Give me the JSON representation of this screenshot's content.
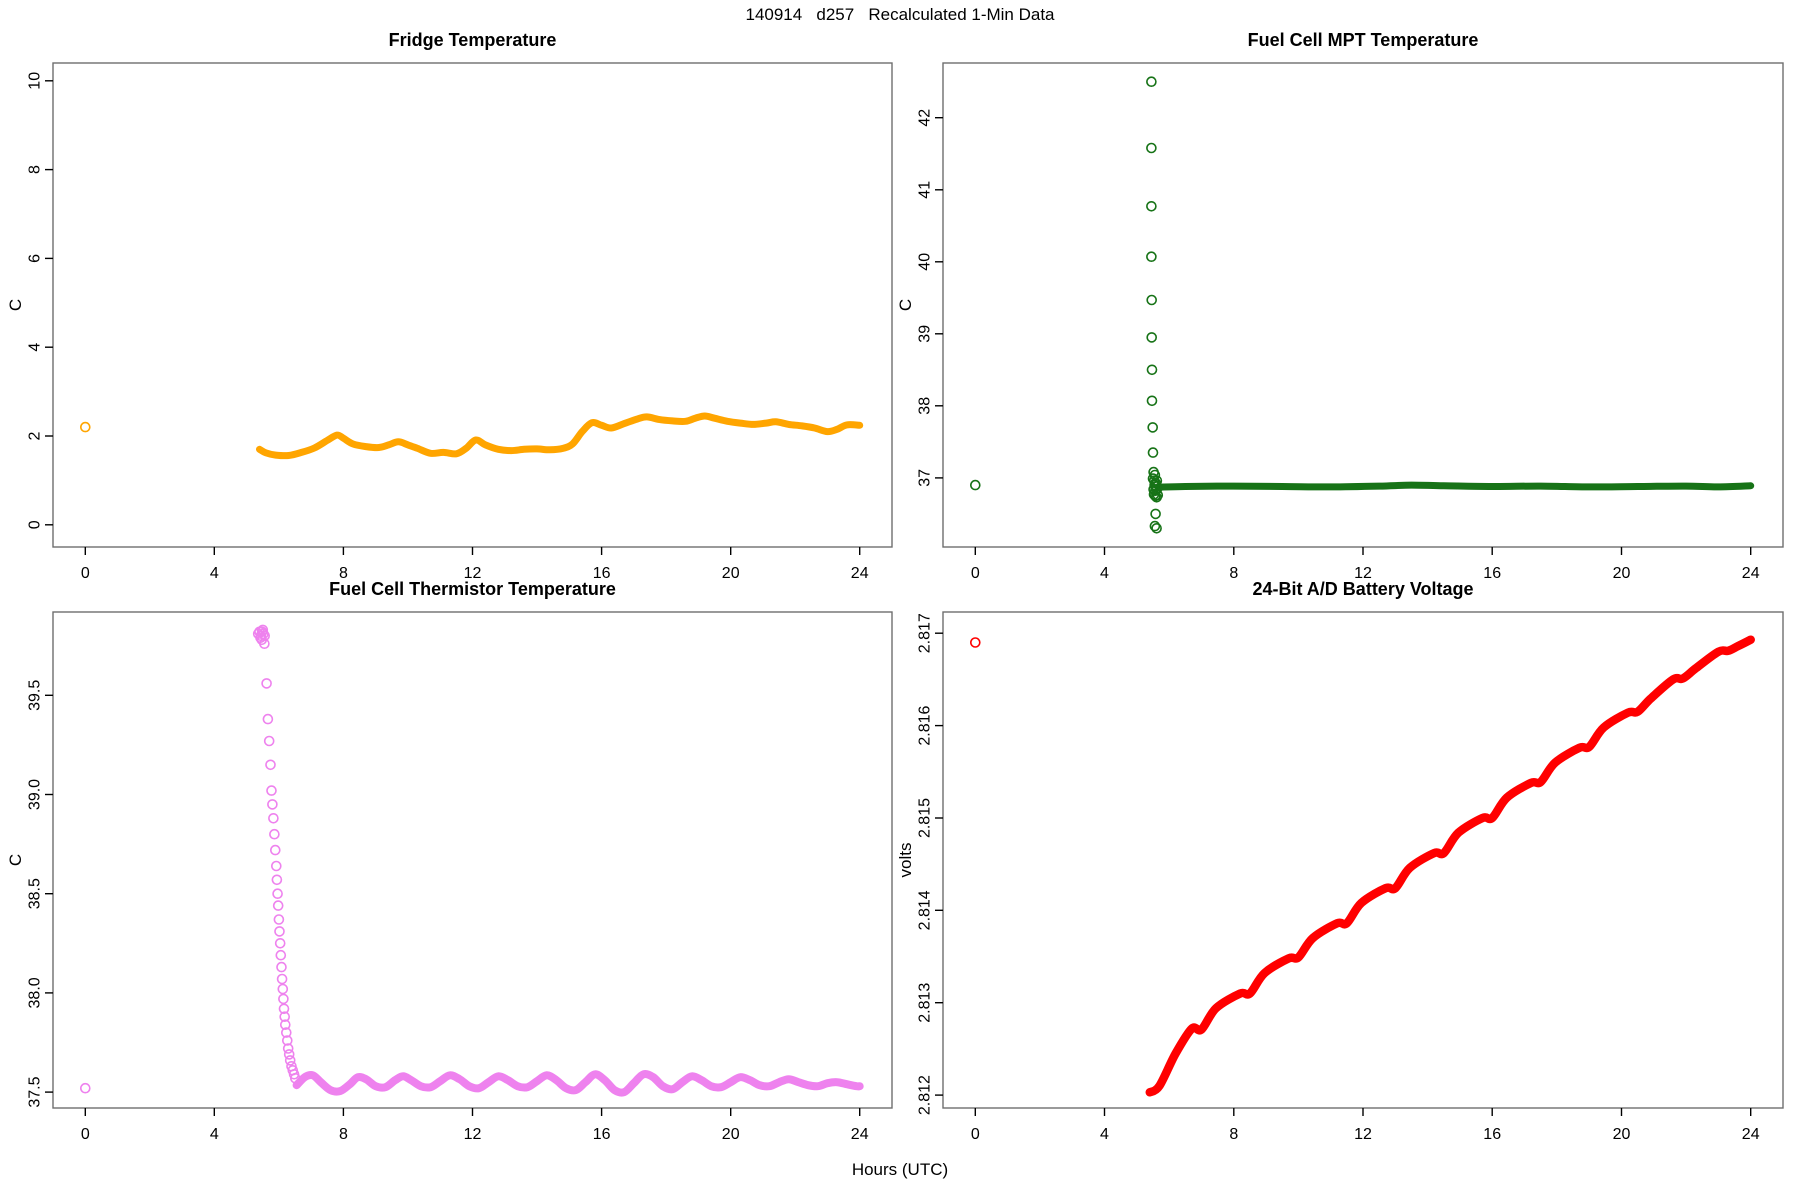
{
  "header": {
    "title": "140914   d257   Recalculated 1-Min Data"
  },
  "footer": {
    "xlabel": "Hours (UTC)"
  },
  "colors": {
    "fridge": "#FFA500",
    "mpt": "#177317",
    "thermistor": "#EE82EE",
    "battery": "#FF0000",
    "box": "#6e6e6e",
    "tick": "#000000"
  },
  "chart_data": [
    {
      "id": "fridge",
      "type": "line",
      "title": "Fridge Temperature",
      "ylabel": "C",
      "xlabel": "",
      "color": "#FFA500",
      "xlim": [
        -1,
        25
      ],
      "ylim": [
        -0.5,
        10.4
      ],
      "xticks": [
        0,
        4,
        8,
        12,
        16,
        20,
        24
      ],
      "xtick_labels": [
        "0",
        "4",
        "8",
        "12",
        "16",
        "20",
        "24"
      ],
      "yticks": [
        0,
        2,
        4,
        6,
        8,
        10
      ],
      "ytick_labels": [
        "0",
        "2",
        "4",
        "6",
        "8",
        "10"
      ],
      "grid": false,
      "isolated_points": [
        [
          0,
          2.2
        ]
      ],
      "points": [],
      "series": [
        {
          "name": "fridge-temp-trace",
          "style": "thick",
          "width": 7,
          "smooth": true,
          "pts": [
            [
              5.4,
              1.7
            ],
            [
              5.6,
              1.62
            ],
            [
              5.9,
              1.57
            ],
            [
              6.3,
              1.56
            ],
            [
              6.7,
              1.63
            ],
            [
              7.1,
              1.73
            ],
            [
              7.5,
              1.9
            ],
            [
              7.8,
              2.02
            ],
            [
              8.0,
              1.95
            ],
            [
              8.3,
              1.82
            ],
            [
              8.7,
              1.76
            ],
            [
              9.1,
              1.74
            ],
            [
              9.4,
              1.8
            ],
            [
              9.7,
              1.87
            ],
            [
              10.0,
              1.8
            ],
            [
              10.3,
              1.72
            ],
            [
              10.7,
              1.61
            ],
            [
              11.1,
              1.63
            ],
            [
              11.5,
              1.6
            ],
            [
              11.8,
              1.72
            ],
            [
              12.1,
              1.91
            ],
            [
              12.4,
              1.8
            ],
            [
              12.8,
              1.7
            ],
            [
              13.2,
              1.67
            ],
            [
              13.6,
              1.7
            ],
            [
              14.0,
              1.71
            ],
            [
              14.4,
              1.69
            ],
            [
              14.8,
              1.72
            ],
            [
              15.1,
              1.82
            ],
            [
              15.4,
              2.1
            ],
            [
              15.7,
              2.3
            ],
            [
              16.0,
              2.24
            ],
            [
              16.3,
              2.18
            ],
            [
              16.7,
              2.28
            ],
            [
              17.1,
              2.38
            ],
            [
              17.4,
              2.43
            ],
            [
              17.8,
              2.37
            ],
            [
              18.2,
              2.34
            ],
            [
              18.6,
              2.33
            ],
            [
              18.9,
              2.4
            ],
            [
              19.2,
              2.45
            ],
            [
              19.5,
              2.4
            ],
            [
              19.9,
              2.33
            ],
            [
              20.3,
              2.29
            ],
            [
              20.7,
              2.26
            ],
            [
              21.1,
              2.29
            ],
            [
              21.4,
              2.32
            ],
            [
              21.8,
              2.26
            ],
            [
              22.2,
              2.23
            ],
            [
              22.6,
              2.18
            ],
            [
              23.0,
              2.1
            ],
            [
              23.3,
              2.15
            ],
            [
              23.6,
              2.25
            ],
            [
              24.0,
              2.24
            ]
          ]
        }
      ]
    },
    {
      "id": "mpt",
      "type": "scatter",
      "title": "Fuel Cell MPT Temperature",
      "ylabel": "C",
      "xlabel": "",
      "color": "#177317",
      "xlim": [
        -1,
        25
      ],
      "ylim": [
        36.04,
        42.76
      ],
      "xticks": [
        0,
        4,
        8,
        12,
        16,
        20,
        24
      ],
      "xtick_labels": [
        "0",
        "4",
        "8",
        "12",
        "16",
        "20",
        "24"
      ],
      "yticks": [
        37,
        38,
        39,
        40,
        41,
        42
      ],
      "ytick_labels": [
        "37",
        "38",
        "39",
        "40",
        "41",
        "42"
      ],
      "grid": false,
      "isolated_points": [
        [
          0,
          36.9
        ]
      ],
      "points": [
        [
          5.45,
          42.5
        ],
        [
          5.45,
          41.58
        ],
        [
          5.45,
          40.77
        ],
        [
          5.45,
          40.07
        ],
        [
          5.46,
          39.47
        ],
        [
          5.46,
          38.95
        ],
        [
          5.47,
          38.5
        ],
        [
          5.47,
          38.07
        ],
        [
          5.49,
          37.7
        ],
        [
          5.5,
          37.35
        ],
        [
          5.52,
          37.08
        ],
        [
          5.56,
          37.04
        ],
        [
          5.5,
          36.99
        ],
        [
          5.54,
          36.96
        ],
        [
          5.58,
          36.93
        ],
        [
          5.62,
          36.96
        ],
        [
          5.55,
          36.9
        ],
        [
          5.6,
          36.88
        ],
        [
          5.52,
          36.84
        ],
        [
          5.57,
          36.82
        ],
        [
          5.62,
          36.84
        ],
        [
          5.53,
          36.77
        ],
        [
          5.57,
          36.75
        ],
        [
          5.61,
          36.73
        ],
        [
          5.65,
          36.76
        ],
        [
          5.58,
          36.5
        ],
        [
          5.56,
          36.33
        ],
        [
          5.61,
          36.3
        ]
      ],
      "series": [
        {
          "name": "mpt-steady-band",
          "style": "thick",
          "width": 7,
          "smooth": true,
          "pts": [
            [
              5.65,
              36.87
            ],
            [
              6.5,
              36.88
            ],
            [
              8.0,
              36.885
            ],
            [
              9.5,
              36.88
            ],
            [
              11.0,
              36.875
            ],
            [
              12.5,
              36.885
            ],
            [
              13.5,
              36.9
            ],
            [
              14.5,
              36.89
            ],
            [
              16.0,
              36.88
            ],
            [
              17.5,
              36.885
            ],
            [
              19.0,
              36.875
            ],
            [
              20.5,
              36.88
            ],
            [
              22.0,
              36.885
            ],
            [
              23.0,
              36.875
            ],
            [
              24.0,
              36.89
            ]
          ]
        }
      ]
    },
    {
      "id": "thermistor",
      "type": "scatter",
      "title": "Fuel Cell Thermistor Temperature",
      "ylabel": "C",
      "xlabel": "",
      "color": "#EE82EE",
      "xlim": [
        -1,
        25
      ],
      "ylim": [
        37.42,
        39.92
      ],
      "xticks": [
        0,
        4,
        8,
        12,
        16,
        20,
        24
      ],
      "xtick_labels": [
        "0",
        "4",
        "8",
        "12",
        "16",
        "20",
        "24"
      ],
      "yticks": [
        37.5,
        38.0,
        38.5,
        39.0,
        39.5
      ],
      "ytick_labels": [
        "37.5",
        "38.0",
        "38.5",
        "39.0",
        "39.5"
      ],
      "grid": false,
      "isolated_points": [
        [
          0,
          37.52
        ]
      ],
      "points": [
        [
          5.36,
          39.81
        ],
        [
          5.4,
          39.82
        ],
        [
          5.44,
          39.8
        ],
        [
          5.48,
          39.82
        ],
        [
          5.52,
          39.81
        ],
        [
          5.56,
          39.8
        ],
        [
          5.43,
          39.79
        ],
        [
          5.5,
          39.83
        ],
        [
          5.47,
          39.78
        ],
        [
          5.55,
          39.76
        ],
        [
          5.62,
          39.56
        ],
        [
          5.66,
          39.38
        ],
        [
          5.7,
          39.27
        ],
        [
          5.74,
          39.15
        ],
        [
          5.77,
          39.02
        ],
        [
          5.8,
          38.95
        ],
        [
          5.83,
          38.88
        ],
        [
          5.86,
          38.8
        ],
        [
          5.89,
          38.72
        ],
        [
          5.92,
          38.64
        ],
        [
          5.94,
          38.57
        ],
        [
          5.96,
          38.5
        ],
        [
          5.98,
          38.44
        ],
        [
          6.0,
          38.37
        ],
        [
          6.02,
          38.31
        ],
        [
          6.04,
          38.25
        ],
        [
          6.06,
          38.19
        ],
        [
          6.08,
          38.13
        ],
        [
          6.1,
          38.07
        ],
        [
          6.12,
          38.02
        ],
        [
          6.14,
          37.97
        ],
        [
          6.16,
          37.92
        ],
        [
          6.18,
          37.88
        ],
        [
          6.2,
          37.84
        ],
        [
          6.23,
          37.8
        ],
        [
          6.26,
          37.76
        ],
        [
          6.29,
          37.72
        ],
        [
          6.32,
          37.69
        ],
        [
          6.35,
          37.66
        ],
        [
          6.39,
          37.63
        ],
        [
          6.43,
          37.61
        ],
        [
          6.47,
          37.59
        ],
        [
          6.51,
          37.57
        ]
      ],
      "series": [
        {
          "name": "thermistor-tail-trace",
          "style": "thick",
          "width": 8,
          "smooth": true,
          "pts": [
            [
              6.55,
              37.535
            ],
            [
              6.8,
              37.575
            ],
            [
              7.05,
              37.585
            ],
            [
              7.3,
              37.55
            ],
            [
              7.6,
              37.51
            ],
            [
              7.9,
              37.505
            ],
            [
              8.2,
              37.54
            ],
            [
              8.45,
              37.575
            ],
            [
              8.7,
              37.565
            ],
            [
              9.0,
              37.53
            ],
            [
              9.3,
              37.525
            ],
            [
              9.6,
              37.56
            ],
            [
              9.85,
              37.58
            ],
            [
              10.1,
              37.56
            ],
            [
              10.4,
              37.53
            ],
            [
              10.7,
              37.525
            ],
            [
              11.0,
              37.555
            ],
            [
              11.3,
              37.585
            ],
            [
              11.6,
              37.565
            ],
            [
              11.9,
              37.53
            ],
            [
              12.2,
              37.52
            ],
            [
              12.5,
              37.55
            ],
            [
              12.8,
              37.58
            ],
            [
              13.1,
              37.56
            ],
            [
              13.4,
              37.53
            ],
            [
              13.7,
              37.525
            ],
            [
              14.0,
              37.555
            ],
            [
              14.3,
              37.585
            ],
            [
              14.6,
              37.56
            ],
            [
              14.9,
              37.52
            ],
            [
              15.2,
              37.51
            ],
            [
              15.5,
              37.55
            ],
            [
              15.8,
              37.59
            ],
            [
              16.1,
              37.56
            ],
            [
              16.4,
              37.51
            ],
            [
              16.7,
              37.5
            ],
            [
              17.0,
              37.545
            ],
            [
              17.3,
              37.59
            ],
            [
              17.6,
              37.575
            ],
            [
              17.9,
              37.53
            ],
            [
              18.2,
              37.515
            ],
            [
              18.5,
              37.55
            ],
            [
              18.8,
              37.58
            ],
            [
              19.1,
              37.56
            ],
            [
              19.4,
              37.53
            ],
            [
              19.7,
              37.525
            ],
            [
              20.0,
              37.55
            ],
            [
              20.3,
              37.575
            ],
            [
              20.6,
              37.56
            ],
            [
              20.9,
              37.535
            ],
            [
              21.2,
              37.53
            ],
            [
              21.5,
              37.55
            ],
            [
              21.8,
              37.565
            ],
            [
              22.1,
              37.55
            ],
            [
              22.4,
              37.535
            ],
            [
              22.7,
              37.53
            ],
            [
              23.0,
              37.545
            ],
            [
              23.3,
              37.55
            ],
            [
              23.6,
              37.54
            ],
            [
              23.9,
              37.53
            ],
            [
              24.0,
              37.53
            ]
          ]
        }
      ]
    },
    {
      "id": "battery",
      "type": "line",
      "title": "24-Bit A/D Battery Voltage",
      "ylabel": "volts",
      "xlabel": "",
      "color": "#FF0000",
      "xlim": [
        -1,
        25
      ],
      "ylim": [
        2.81186,
        2.81723
      ],
      "xticks": [
        0,
        4,
        8,
        12,
        16,
        20,
        24
      ],
      "xtick_labels": [
        "0",
        "4",
        "8",
        "12",
        "16",
        "20",
        "24"
      ],
      "yticks": [
        2.812,
        2.813,
        2.814,
        2.815,
        2.816,
        2.817
      ],
      "ytick_labels": [
        "2.812",
        "2.813",
        "2.814",
        "2.815",
        "2.816",
        "2.817"
      ],
      "grid": false,
      "isolated_points": [
        [
          0,
          2.8169
        ]
      ],
      "points": [],
      "series": [
        {
          "name": "battery-voltage-trace",
          "style": "thick",
          "width": 8.5,
          "smooth": true,
          "pts": [
            [
              5.4,
              2.81203
            ],
            [
              5.7,
              2.8121
            ],
            [
              6.2,
              2.81245
            ],
            [
              6.7,
              2.81272
            ],
            [
              7.0,
              2.81271
            ],
            [
              7.45,
              2.81294
            ],
            [
              8.2,
              2.8131
            ],
            [
              8.5,
              2.8131
            ],
            [
              8.95,
              2.81332
            ],
            [
              9.7,
              2.81348
            ],
            [
              10.0,
              2.81349
            ],
            [
              10.45,
              2.8137
            ],
            [
              11.2,
              2.81386
            ],
            [
              11.5,
              2.81386
            ],
            [
              11.95,
              2.81408
            ],
            [
              12.7,
              2.81424
            ],
            [
              13.0,
              2.81424
            ],
            [
              13.45,
              2.81446
            ],
            [
              14.2,
              2.81462
            ],
            [
              14.5,
              2.81462
            ],
            [
              14.95,
              2.81484
            ],
            [
              15.7,
              2.815
            ],
            [
              16.0,
              2.815
            ],
            [
              16.45,
              2.81522
            ],
            [
              17.2,
              2.81538
            ],
            [
              17.5,
              2.81539
            ],
            [
              17.95,
              2.8156
            ],
            [
              18.7,
              2.81576
            ],
            [
              19.0,
              2.81577
            ],
            [
              19.45,
              2.81598
            ],
            [
              20.2,
              2.81614
            ],
            [
              20.5,
              2.81615
            ],
            [
              20.9,
              2.81629
            ],
            [
              21.6,
              2.8165
            ],
            [
              21.9,
              2.81651
            ],
            [
              22.3,
              2.81662
            ],
            [
              23.0,
              2.8168
            ],
            [
              23.3,
              2.81681
            ],
            [
              23.6,
              2.81686
            ],
            [
              24.0,
              2.81693
            ]
          ]
        }
      ]
    }
  ]
}
